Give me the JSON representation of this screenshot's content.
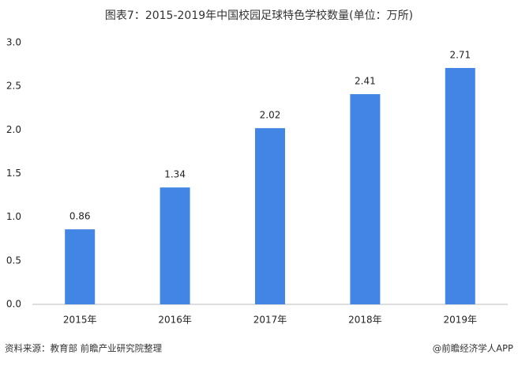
{
  "chart_data": {
    "type": "bar",
    "title": "图表7：2015-2019年中国校园足球特色学校数量(单位：万所)",
    "categories": [
      "2015年",
      "2016年",
      "2017年",
      "2018年",
      "2019年"
    ],
    "values": [
      0.86,
      1.34,
      2.02,
      2.41,
      2.71
    ],
    "color": "#4285e4",
    "ylim": [
      0,
      3
    ],
    "yticks": [
      {
        "value": 0,
        "label": "0.0"
      },
      0.5,
      {
        "value": 1,
        "label": "1.0"
      },
      1.5,
      {
        "value": 2,
        "label": "2.0"
      },
      2.5,
      {
        "value": 3,
        "label": "3.0"
      }
    ],
    "grid": false,
    "source": "资料来源：教育部 前瞻产业研究院整理",
    "credit": "@前瞻经济学人APP"
  }
}
